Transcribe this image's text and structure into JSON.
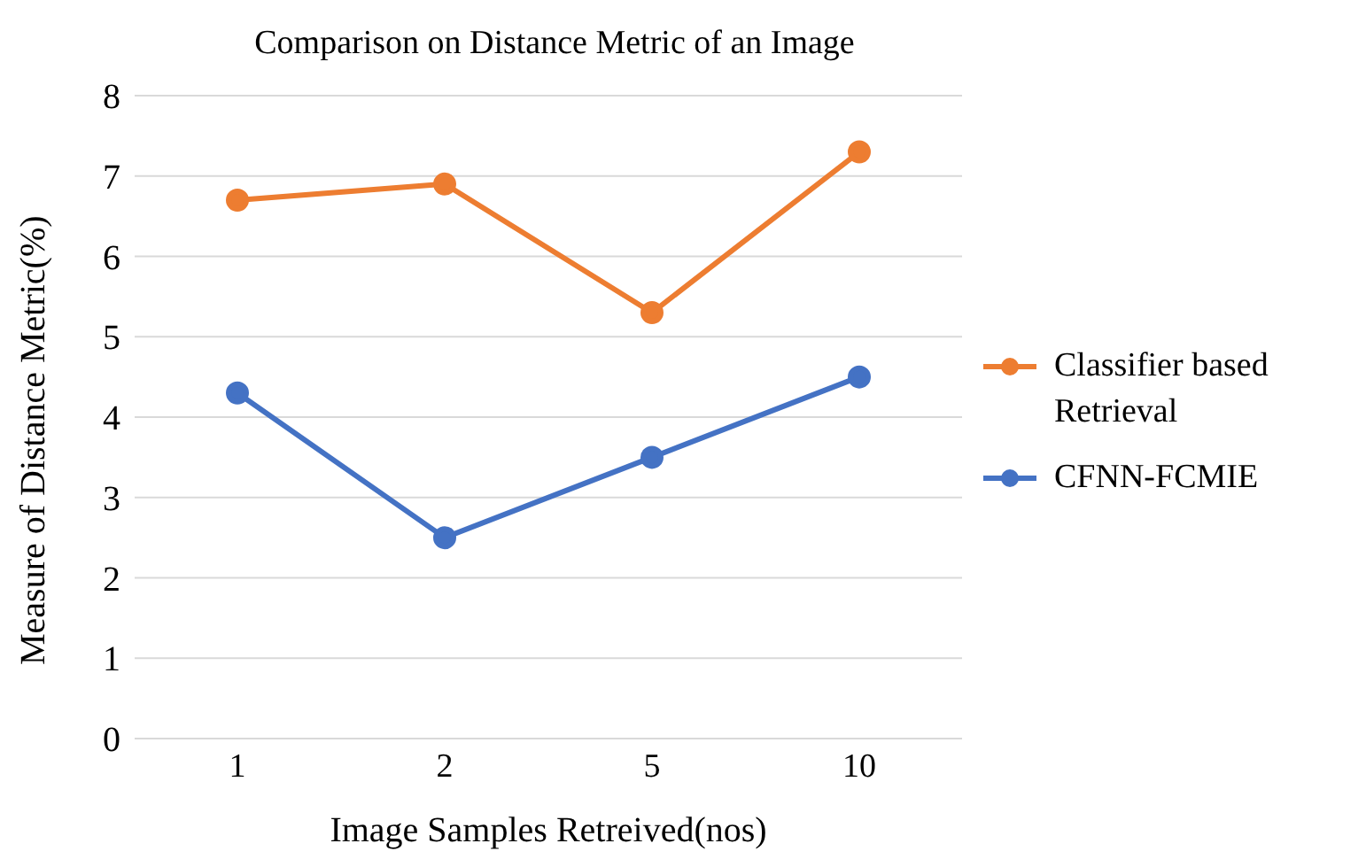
{
  "chart_data": {
    "type": "line",
    "title": "Comparison on Distance Metric of an Image",
    "xlabel": "Image Samples Retreived(nos)",
    "ylabel": "Measure of Distance Metric(%)",
    "categories": [
      "1",
      "2",
      "5",
      "10"
    ],
    "series": [
      {
        "name": "Classifier based Retrieval",
        "color": "#ed7d31",
        "values": [
          6.7,
          6.9,
          5.3,
          7.3
        ]
      },
      {
        "name": "CFNN-FCMIE",
        "color": "#4472c4",
        "values": [
          4.3,
          2.5,
          3.5,
          4.5
        ]
      }
    ],
    "ylim": [
      0,
      8
    ],
    "yticks": [
      0,
      1,
      2,
      3,
      4,
      5,
      6,
      7,
      8
    ],
    "grid": "y",
    "legend": "right",
    "marker": "circle",
    "line_style": "solid"
  }
}
